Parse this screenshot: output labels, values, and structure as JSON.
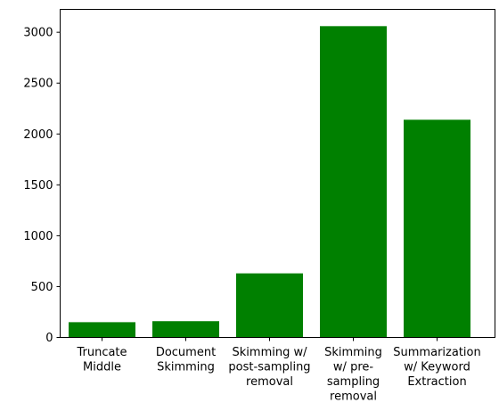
{
  "chart_data": {
    "type": "bar",
    "title": "",
    "xlabel": "",
    "ylabel": "",
    "categories": [
      [
        "Truncate",
        "Middle"
      ],
      [
        "Document",
        "Skimming"
      ],
      [
        "Skimming w/",
        "post-sampling",
        "removal"
      ],
      [
        "Skimming",
        "w/ pre-",
        "sampling",
        "removal"
      ],
      [
        "Summarization",
        "w/ Keyword",
        "Extraction"
      ]
    ],
    "values": [
      150,
      160,
      630,
      3060,
      2140
    ],
    "ylim": [
      0,
      3225
    ],
    "yticks": [
      0,
      500,
      1000,
      1500,
      2000,
      2500,
      3000
    ],
    "bar_color": "#008000",
    "grid": false
  }
}
